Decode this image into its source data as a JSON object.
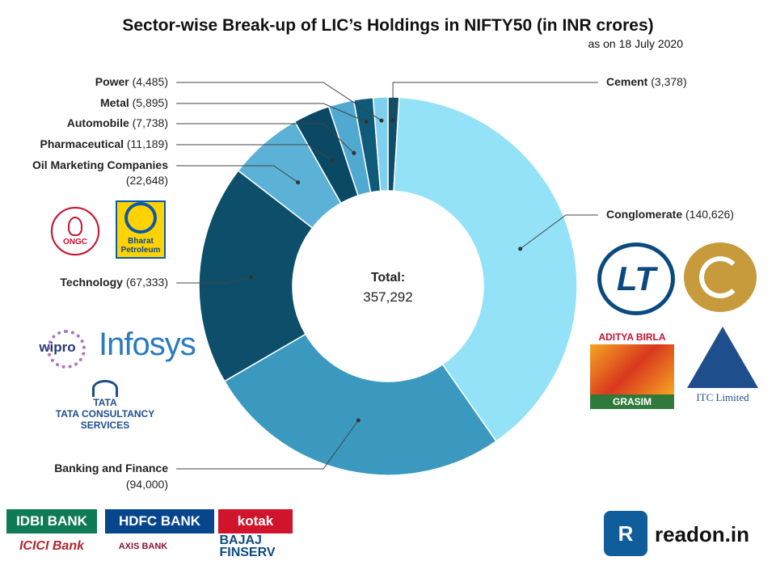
{
  "chart_data": {
    "type": "pie",
    "title": "Sector-wise Break-up of LIC’s Holdings in NIFTY50 (in INR crores)",
    "subtitle": "as on 18 July 2020",
    "center_label": "Total:",
    "center_value": "357,292",
    "slices": [
      {
        "name": "Cement",
        "value": 3378,
        "value_label": "(3,378)",
        "color": "#0d4e68"
      },
      {
        "name": "Conglomerate",
        "value": 140626,
        "value_label": "(140,626)",
        "color": "#93e2f7"
      },
      {
        "name": "Banking and Finance",
        "value": 94000,
        "value_label": "(94,000)",
        "color": "#3b99bf"
      },
      {
        "name": "Technology",
        "value": 67333,
        "value_label": "(67,333)",
        "color": "#0d4f6a"
      },
      {
        "name": "Oil Marketing Companies",
        "value": 22648,
        "value_label": "(22,648)",
        "color": "#5bb2d6"
      },
      {
        "name": "Pharmaceutical",
        "value": 11189,
        "value_label": "(11,189)",
        "color": "#0b4863"
      },
      {
        "name": "Automobile",
        "value": 7738,
        "value_label": "(7,738)",
        "color": "#4fa9d1"
      },
      {
        "name": "Metal",
        "value": 5895,
        "value_label": "(5,895)",
        "color": "#0e5a78"
      },
      {
        "name": "Power",
        "value": 4485,
        "value_label": "(4,485)",
        "color": "#7fd0ee"
      }
    ]
  },
  "logos": {
    "ongc": "ONGC",
    "bharat_petroleum": [
      "Bharat",
      "Petroleum"
    ],
    "wipro": "wipro",
    "infosys": "Infosys",
    "tata": [
      "TATA",
      "TATA CONSULTANCY SERVICES"
    ],
    "lt": "LT",
    "aditya_birla": [
      "ADITYA BIRLA",
      "GRASIM"
    ],
    "itc": "ITC Limited",
    "idbi": "IDBI BANK",
    "hdfc": "HDFC BANK",
    "kotak": "kotak",
    "icici": "ICICI Bank",
    "axis": "AXIS BANK",
    "bajaj": [
      "BAJAJ",
      "FINSERV"
    ]
  },
  "brand": {
    "name": "readon.in",
    "icon": "readon-logo-icon"
  }
}
